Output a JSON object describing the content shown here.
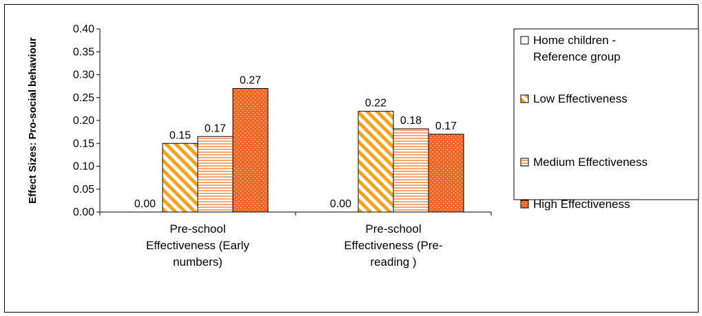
{
  "chart_data": {
    "type": "bar",
    "title": "",
    "xlabel": "",
    "ylabel": "Effect Sizes: Pro-social behaviour",
    "ylim": [
      0,
      0.4
    ],
    "yticks": [
      "0.00",
      "0.05",
      "0.10",
      "0.15",
      "0.20",
      "0.25",
      "0.30",
      "0.35",
      "0.40"
    ],
    "categories": [
      [
        "Pre-school",
        "Effectiveness (Early",
        "numbers)"
      ],
      [
        "Pre-school",
        "Effectiveness (Pre-",
        "reading )"
      ]
    ],
    "series": [
      {
        "name": "Home children - Reference group",
        "legend_lines": [
          "Home children -",
          "Reference group"
        ],
        "values": [
          0.0,
          0.0
        ],
        "labels": [
          "0.00",
          "0.00"
        ],
        "pattern": "blank"
      },
      {
        "name": "Low Effectiveness",
        "legend_lines": [
          "Low Effectiveness"
        ],
        "values": [
          0.15,
          0.22
        ],
        "labels": [
          "0.15",
          "0.22"
        ],
        "pattern": "diagonal"
      },
      {
        "name": "Medium Effectiveness",
        "legend_lines": [
          "Medium Effectiveness"
        ],
        "values": [
          0.165,
          0.182
        ],
        "labels": [
          "0.17",
          "0.18"
        ],
        "pattern": "horizontal"
      },
      {
        "name": "High Effectiveness",
        "legend_lines": [
          "High Effectiveness"
        ],
        "values": [
          0.27,
          0.17
        ],
        "labels": [
          "0.27",
          "0.17"
        ],
        "pattern": "dotted"
      }
    ],
    "colors": {
      "orange": "#f7a21b",
      "orange_dark": "#f26522",
      "medium_stripe": "#f4a46f",
      "outline": "#000000"
    },
    "grid": false,
    "legend_position": "right"
  }
}
